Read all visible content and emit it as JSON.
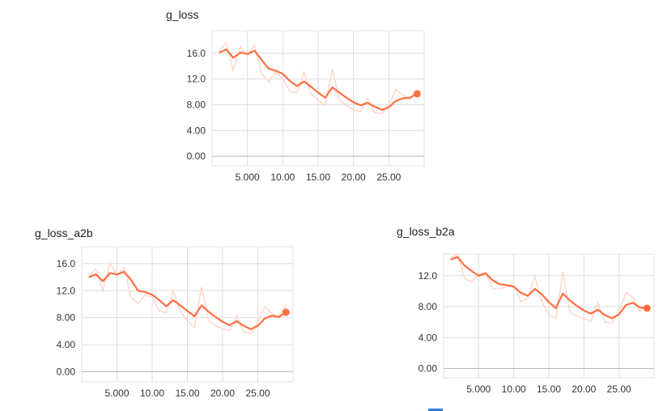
{
  "colors": {
    "smoothed": "#ff7043",
    "raw": "#ffd9cb",
    "grid": "#dcdcdc"
  },
  "chart_data": [
    {
      "type": "line",
      "title": "g_loss",
      "xlim": [
        0,
        30
      ],
      "ylim": [
        -1.5,
        19.5
      ],
      "x_ticks": [
        5,
        10,
        15,
        20,
        25
      ],
      "x_tick_labels": [
        "5.000",
        "10.00",
        "15.00",
        "20.00",
        "25.00"
      ],
      "y_ticks": [
        0,
        4,
        8,
        12,
        16
      ],
      "y_tick_labels": [
        "0.00",
        "4.00",
        "8.00",
        "12.0",
        "16.0"
      ],
      "series": [
        {
          "x": [
            1,
            2,
            3,
            4,
            5,
            6,
            7,
            8,
            9,
            10,
            11,
            12,
            13,
            14,
            15,
            16,
            17,
            18,
            19,
            20,
            21,
            22,
            23,
            24,
            25,
            26,
            27,
            28,
            29
          ],
          "values": [
            16.3,
            17.6,
            13.4,
            17.0,
            15.6,
            17.3,
            12.9,
            11.6,
            13.1,
            12.0,
            10.1,
            9.8,
            13.1,
            9.7,
            8.7,
            7.9,
            13.6,
            8.7,
            7.9,
            7.2,
            6.9,
            9.0,
            6.8,
            6.6,
            8.0,
            10.4,
            9.5,
            8.8,
            10.4
          ]
        },
        {
          "x": [
            1,
            2,
            3,
            4,
            5,
            6,
            7,
            8,
            9,
            10,
            11,
            12,
            13,
            14,
            15,
            16,
            17,
            18,
            19,
            20,
            21,
            22,
            23,
            24,
            25,
            26,
            27,
            28,
            29
          ],
          "values": [
            16.1,
            16.6,
            15.3,
            16.1,
            15.9,
            16.4,
            15.0,
            13.6,
            13.3,
            12.8,
            11.7,
            10.9,
            11.6,
            10.8,
            9.9,
            9.1,
            10.7,
            9.9,
            9.1,
            8.4,
            7.9,
            8.3,
            7.7,
            7.2,
            7.6,
            8.6,
            9.0,
            9.1,
            9.7
          ]
        }
      ]
    },
    {
      "type": "line",
      "title": "g_loss_a2b",
      "xlim": [
        0,
        30
      ],
      "ylim": [
        -1.5,
        18.5
      ],
      "x_ticks": [
        5,
        10,
        15,
        20,
        25
      ],
      "x_tick_labels": [
        "5.000",
        "10.00",
        "15.00",
        "20.00",
        "25.00"
      ],
      "y_ticks": [
        0,
        4,
        8,
        12,
        16
      ],
      "y_tick_labels": [
        "0.00",
        "4.00",
        "8.00",
        "12.0",
        "16.0"
      ],
      "series": [
        {
          "x": [
            1,
            2,
            3,
            4,
            5,
            6,
            7,
            8,
            9,
            10,
            11,
            12,
            13,
            14,
            15,
            16,
            17,
            18,
            19,
            20,
            21,
            22,
            23,
            24,
            25,
            26,
            27,
            28,
            29
          ],
          "values": [
            14.2,
            15.2,
            12.0,
            16.1,
            14.3,
            15.4,
            11.0,
            10.1,
            11.4,
            11.0,
            9.0,
            8.7,
            12.0,
            8.9,
            7.5,
            6.5,
            12.5,
            7.6,
            6.8,
            6.3,
            6.1,
            8.3,
            5.8,
            5.6,
            7.3,
            9.6,
            8.6,
            8.1,
            9.9
          ]
        },
        {
          "x": [
            1,
            2,
            3,
            4,
            5,
            6,
            7,
            8,
            9,
            10,
            11,
            12,
            13,
            14,
            15,
            16,
            17,
            18,
            19,
            20,
            21,
            22,
            23,
            24,
            25,
            26,
            27,
            28,
            29
          ],
          "values": [
            14.0,
            14.4,
            13.4,
            14.6,
            14.4,
            14.8,
            13.6,
            12.0,
            11.8,
            11.4,
            10.6,
            9.7,
            10.6,
            9.8,
            9.0,
            8.2,
            9.8,
            8.9,
            8.1,
            7.4,
            6.9,
            7.5,
            6.8,
            6.3,
            6.8,
            7.9,
            8.3,
            8.1,
            8.8
          ]
        }
      ]
    },
    {
      "type": "line",
      "title": "g_loss_b2a",
      "xlim": [
        0,
        30
      ],
      "ylim": [
        -1.2,
        14.8
      ],
      "x_ticks": [
        5,
        10,
        15,
        20,
        25
      ],
      "x_tick_labels": [
        "5.000",
        "10.00",
        "15.00",
        "20.00",
        "25.00"
      ],
      "y_ticks": [
        0,
        4,
        8,
        12
      ],
      "y_tick_labels": [
        "0.00",
        "4.00",
        "8.00",
        "12.0"
      ],
      "series": [
        {
          "x": [
            1,
            2,
            3,
            4,
            5,
            6,
            7,
            8,
            9,
            10,
            11,
            12,
            13,
            14,
            15,
            16,
            17,
            18,
            19,
            20,
            21,
            22,
            23,
            24,
            25,
            26,
            27,
            28,
            29
          ],
          "values": [
            14.3,
            14.8,
            11.6,
            11.2,
            12.2,
            12.4,
            10.3,
            10.3,
            10.6,
            10.8,
            8.6,
            9.1,
            11.9,
            8.6,
            7.0,
            6.5,
            12.5,
            7.3,
            6.8,
            6.4,
            6.1,
            8.5,
            6.0,
            5.9,
            7.2,
            9.8,
            9.2,
            7.3,
            8.3
          ]
        },
        {
          "x": [
            1,
            2,
            3,
            4,
            5,
            6,
            7,
            8,
            9,
            10,
            11,
            12,
            13,
            14,
            15,
            16,
            17,
            18,
            19,
            20,
            21,
            22,
            23,
            24,
            25,
            26,
            27,
            28,
            29
          ],
          "values": [
            14.1,
            14.4,
            13.3,
            12.6,
            12.0,
            12.3,
            11.4,
            10.9,
            10.8,
            10.6,
            9.8,
            9.4,
            10.3,
            9.6,
            8.6,
            7.8,
            9.7,
            8.8,
            8.1,
            7.5,
            7.1,
            7.6,
            6.9,
            6.5,
            7.0,
            8.2,
            8.5,
            7.9,
            7.8
          ]
        }
      ]
    }
  ]
}
